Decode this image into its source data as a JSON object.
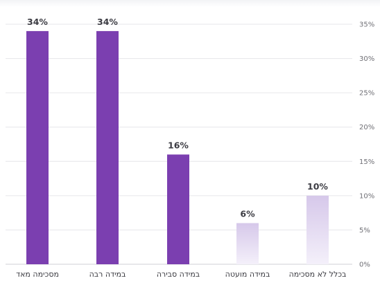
{
  "chart_data": {
    "type": "bar",
    "title": "",
    "xlabel": "",
    "ylabel": "",
    "categories": [
      "מסכימה מאד",
      "במידה רבה",
      "במידה סבירה",
      "במידה מועטה",
      "בכלל לא מסכימה"
    ],
    "values": [
      34,
      34,
      16,
      6,
      10
    ],
    "data_labels": [
      "34%",
      "34%",
      "16%",
      "6%",
      "10%"
    ],
    "ylim": [
      0,
      35
    ],
    "y_ticks": [
      0,
      5,
      10,
      15,
      20,
      25,
      30,
      35
    ],
    "y_tick_labels": [
      "0%",
      "5%",
      "10%",
      "15%",
      "20%",
      "25%",
      "30%",
      "35%"
    ],
    "y_axis_position": "right",
    "grid": true,
    "legend": "none",
    "bar_styles": [
      "solid",
      "solid",
      "solid",
      "gradient-light",
      "gradient-light"
    ],
    "colors": {
      "bar_solid": "#7b3fb0",
      "bar_light_top": "#d6c8ea",
      "bar_light_bottom": "#f4f0fa",
      "grid": "#e6e6e9",
      "text": "#3a3a40"
    }
  }
}
